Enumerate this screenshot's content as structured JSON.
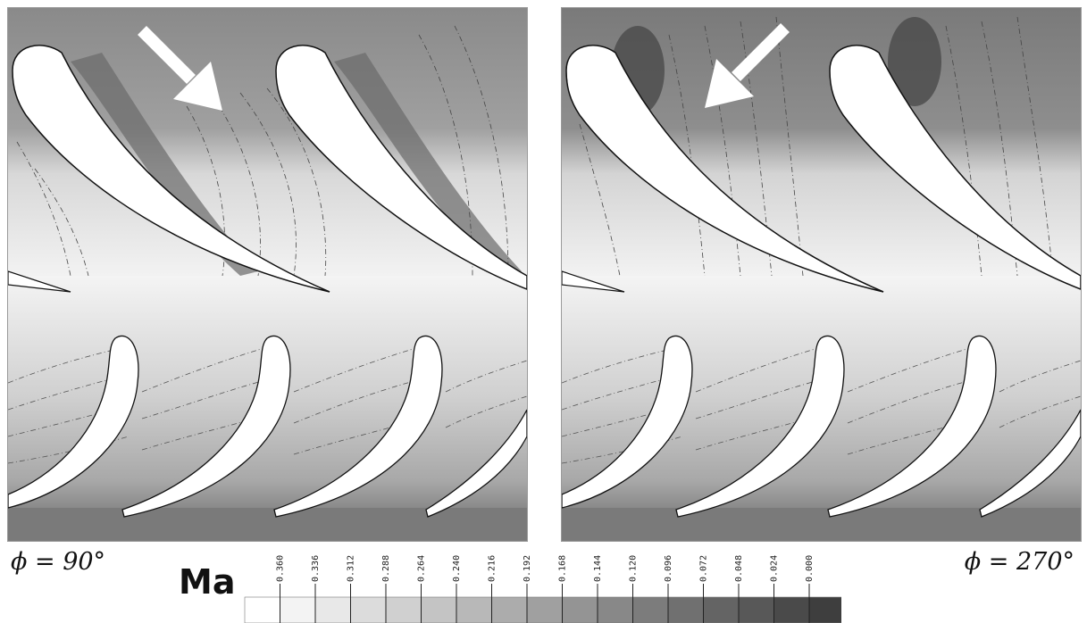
{
  "panels": [
    {
      "id": "left",
      "label": "ϕ = 90°",
      "arrow_direction": "down-right"
    },
    {
      "id": "right",
      "label": "ϕ = 270°",
      "arrow_direction": "down-left"
    }
  ],
  "legend": {
    "title": "Ma",
    "ticks": [
      "0.360",
      "0.336",
      "0.312",
      "0.288",
      "0.264",
      "0.240",
      "0.216",
      "0.192",
      "0.168",
      "0.144",
      "0.120",
      "0.096",
      "0.072",
      "0.048",
      "0.024",
      "0.000"
    ],
    "colors": [
      "#ffffff",
      "#f3f3f3",
      "#e8e8e8",
      "#dcdcdc",
      "#d0d0d0",
      "#c4c4c4",
      "#b8b8b8",
      "#acacac",
      "#a0a0a0",
      "#949494",
      "#888888",
      "#7c7c7c",
      "#707070",
      "#646464",
      "#585858",
      "#4a4a4a",
      "#3e3e3e"
    ]
  },
  "colors": {
    "upper_flow": "#8a8a8a",
    "upper_dark": "#5c5c5c",
    "lower_flow": "#e6e6e6",
    "bottom_band": "#7a7a7a",
    "blade": "#ffffff",
    "arrow": "#ffffff"
  }
}
